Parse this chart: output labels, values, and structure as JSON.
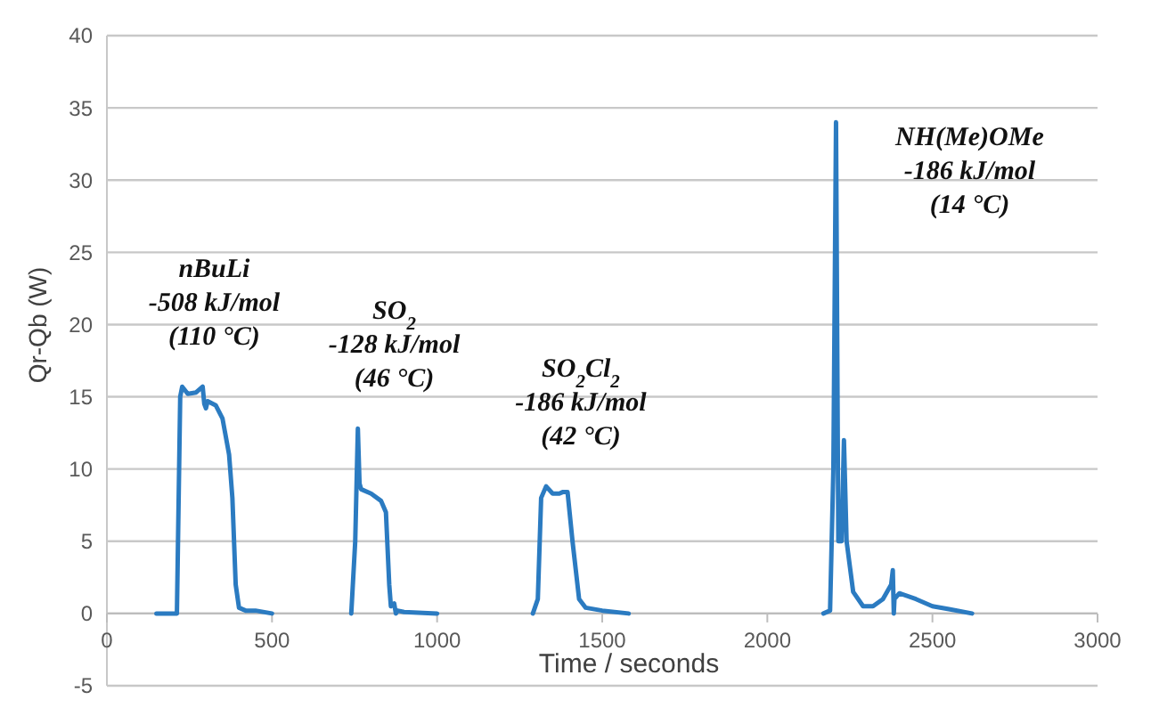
{
  "chart_data": {
    "type": "line",
    "xlabel": "Time / seconds",
    "ylabel": "Qr-Qb (W)",
    "xlim": [
      0,
      3000
    ],
    "xticks": [
      0,
      500,
      1000,
      1500,
      2000,
      2500,
      3000
    ],
    "ylim": [
      -5,
      40
    ],
    "yticks": [
      -5,
      0,
      5,
      10,
      15,
      20,
      25,
      30,
      35,
      40
    ],
    "grid": "y",
    "line_style": "solid",
    "marker": "none",
    "series": [
      {
        "color": "#2b7bc1",
        "x": [
          150,
          212,
          222,
          228,
          245,
          270,
          290,
          295,
          300,
          305,
          330,
          350,
          370,
          380,
          390,
          400,
          420,
          450,
          500,
          600,
          740,
          752,
          760,
          765,
          770,
          800,
          830,
          845,
          855,
          860,
          870,
          875,
          880,
          900,
          1000,
          1100,
          1290,
          1305,
          1315,
          1330,
          1350,
          1370,
          1380,
          1395,
          1410,
          1430,
          1450,
          1500,
          1580,
          1900,
          2170,
          2190,
          2200,
          2208,
          2215,
          2225,
          2232,
          2240,
          2260,
          2290,
          2320,
          2350,
          2375,
          2380,
          2383,
          2385,
          2400,
          2450,
          2500,
          2550,
          2620
        ],
        "values": [
          0,
          0,
          15,
          15.7,
          15.2,
          15.3,
          15.7,
          14.5,
          14.2,
          14.7,
          14.4,
          13.5,
          11,
          8,
          2,
          0.4,
          0.2,
          0.2,
          0,
          null,
          0,
          5,
          12.8,
          9,
          8.6,
          8.3,
          7.8,
          7,
          2,
          0.5,
          0.7,
          0,
          0.2,
          0.1,
          0,
          null,
          0,
          1,
          8,
          8.8,
          8.3,
          8.3,
          8.4,
          8.4,
          5,
          1,
          0.4,
          0.2,
          0,
          null,
          0,
          0.2,
          10,
          34,
          5,
          5,
          12,
          5,
          1.5,
          0.5,
          0.5,
          1,
          2,
          3,
          0,
          1,
          1.4,
          1,
          0.5,
          0.3,
          0
        ]
      }
    ],
    "annotations": [
      "nBuLi\n-508 kJ/mol\n(110 °C)",
      "SO$_{2}$\n-128 kJ/mol\n(46 °C)",
      "SO$_{2}$Cl$_{2}$\n-186 kJ/mol\n(42 °C)",
      "NH(Me)OMe\n-186 kJ/mol\n(14 °C)"
    ]
  }
}
